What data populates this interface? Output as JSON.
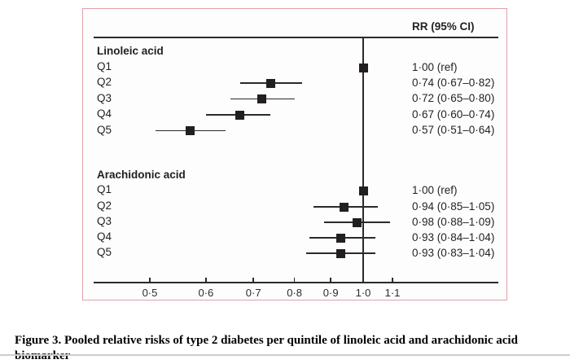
{
  "chart_data": {
    "type": "forest",
    "title": "",
    "column_header": "RR (95% CI)",
    "x_scale": "log",
    "xlim": [
      0.42,
      1.55
    ],
    "x_ticks": [
      0.5,
      0.6,
      0.7,
      0.8,
      0.9,
      1.0,
      1.1
    ],
    "x_tick_labels": [
      "0·5",
      "0·6",
      "0·7",
      "0·8",
      "0·9",
      "1·0",
      "1·1"
    ],
    "reference_line": 1.0,
    "grid": false,
    "marker": "filled-square",
    "groups": [
      {
        "name": "Linoleic acid",
        "rows": [
          {
            "label": "Q1",
            "rr": 1.0,
            "lo": null,
            "hi": null,
            "text": "1·00 (ref)"
          },
          {
            "label": "Q2",
            "rr": 0.74,
            "lo": 0.67,
            "hi": 0.82,
            "text": "0·74 (0·67–0·82)"
          },
          {
            "label": "Q3",
            "rr": 0.72,
            "lo": 0.65,
            "hi": 0.8,
            "text": "0·72 (0·65–0·80)"
          },
          {
            "label": "Q4",
            "rr": 0.67,
            "lo": 0.6,
            "hi": 0.74,
            "text": "0·67 (0·60–0·74)"
          },
          {
            "label": "Q5",
            "rr": 0.57,
            "lo": 0.51,
            "hi": 0.64,
            "text": "0·57 (0·51–0·64)"
          }
        ]
      },
      {
        "name": "Arachidonic acid",
        "rows": [
          {
            "label": "Q1",
            "rr": 1.0,
            "lo": null,
            "hi": null,
            "text": "1·00 (ref)"
          },
          {
            "label": "Q2",
            "rr": 0.94,
            "lo": 0.85,
            "hi": 1.05,
            "text": "0·94 (0·85–1·05)"
          },
          {
            "label": "Q3",
            "rr": 0.98,
            "lo": 0.88,
            "hi": 1.09,
            "text": "0·98 (0·88–1·09)"
          },
          {
            "label": "Q4",
            "rr": 0.93,
            "lo": 0.84,
            "hi": 1.04,
            "text": "0·93 (0·84–1·04)"
          },
          {
            "label": "Q5",
            "rr": 0.93,
            "lo": 0.83,
            "hi": 1.04,
            "text": "0·93 (0·83–1·04)"
          }
        ]
      }
    ]
  },
  "caption": {
    "text": "Figure 3. Pooled relative risks of type 2 diabetes per quintile of linoleic acid and arachidonic acid biomarker"
  },
  "colors": {
    "panel_border": "#e2a0ab",
    "ink": "#231f20",
    "bottom_rule": "#cdcdcd"
  }
}
